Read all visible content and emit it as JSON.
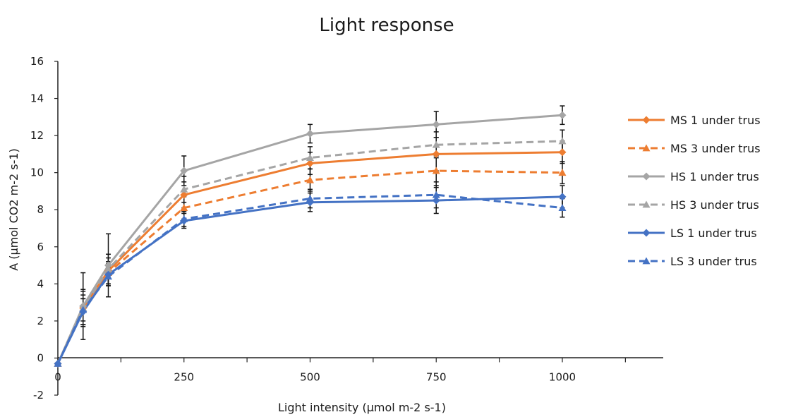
{
  "chart_data": {
    "type": "line",
    "title": "Light response",
    "xlabel": "Light intensity (µmol m-2 s-1)",
    "ylabel": "A (µmol CO2 m-2 s-1)",
    "x": [
      0,
      50,
      100,
      250,
      500,
      750,
      1000
    ],
    "x_ticks": [
      "0",
      "250",
      "500",
      "750",
      "1000"
    ],
    "xlim": [
      0,
      1200
    ],
    "y_ticks": [
      "-2",
      "0",
      "2",
      "4",
      "6",
      "8",
      "10",
      "12",
      "14",
      "16"
    ],
    "ylim": [
      -2,
      16
    ],
    "grid": false,
    "legend_position": "right",
    "series": [
      {
        "name": "MS  1 under trus",
        "color": "#ed7d31",
        "dash": false,
        "marker": "diamond",
        "values": [
          -0.3,
          2.7,
          4.7,
          8.8,
          10.5,
          11.0,
          11.1
        ],
        "errors": [
          0,
          0.9,
          0.7,
          0.7,
          0.6,
          0.9,
          0.6
        ]
      },
      {
        "name": "MS  3 under trus",
        "color": "#ed7d31",
        "dash": true,
        "marker": "triangle",
        "values": [
          -0.3,
          2.6,
          4.6,
          8.1,
          9.6,
          10.1,
          10.0
        ],
        "errors": [
          0,
          0.8,
          0.6,
          0.6,
          0.6,
          0.8,
          0.6
        ]
      },
      {
        "name": "HS  1 under trus",
        "color": "#a5a5a5",
        "dash": false,
        "marker": "diamond",
        "values": [
          -0.3,
          2.8,
          5.0,
          10.1,
          12.1,
          12.6,
          13.1
        ],
        "errors": [
          0,
          1.8,
          1.7,
          0.8,
          0.5,
          0.7,
          0.5
        ]
      },
      {
        "name": "HS  3 under trus",
        "color": "#a5a5a5",
        "dash": true,
        "marker": "triangle",
        "values": [
          -0.3,
          2.7,
          4.8,
          9.1,
          10.8,
          11.5,
          11.7
        ],
        "errors": [
          0,
          1.0,
          0.8,
          0.7,
          0.6,
          0.7,
          0.6
        ]
      },
      {
        "name": "LS  1 under trus",
        "color": "#4472c4",
        "dash": false,
        "marker": "diamond",
        "values": [
          -0.3,
          2.5,
          4.5,
          7.4,
          8.4,
          8.5,
          8.7
        ],
        "errors": [
          0,
          0.7,
          0.6,
          0.4,
          0.5,
          0.7,
          0.6
        ]
      },
      {
        "name": "LS  3 under trus",
        "color": "#4472c4",
        "dash": true,
        "marker": "triangle",
        "values": [
          -0.3,
          2.6,
          4.4,
          7.5,
          8.6,
          8.8,
          8.1
        ],
        "errors": [
          0,
          0.6,
          0.5,
          0.4,
          0.5,
          0.7,
          0.5
        ]
      }
    ]
  }
}
